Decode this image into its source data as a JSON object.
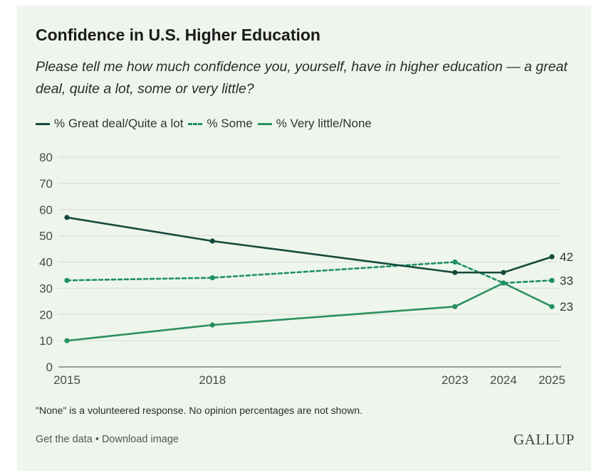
{
  "title": "Confidence in U.S. Higher Education",
  "subtitle": "Please tell me how much confidence you, yourself, have in higher education — a great deal, quite a lot, some or very little?",
  "note": "\"None\" is a volunteered response. No opinion percentages are not shown.",
  "footer": {
    "get_data": "Get the data",
    "separator": " • ",
    "download": "Download image"
  },
  "logo": "GALLUP",
  "colors": {
    "background": "#eef5ec",
    "great_deal": "#134a3c",
    "some": "#1d8f67",
    "very_little": "#2a915e",
    "grid": "#d5dcd3"
  },
  "chart_data": {
    "type": "line",
    "title": "Confidence in U.S. Higher Education",
    "x": [
      2015,
      2018,
      2023,
      2024,
      2025
    ],
    "x_tick_labels": [
      "2015",
      "2018",
      "2023",
      "2024",
      "2025"
    ],
    "y_ticks": [
      "0",
      "10",
      "20",
      "30",
      "40",
      "50",
      "60",
      "70",
      "80"
    ],
    "ylim": [
      0,
      80
    ],
    "grid": true,
    "legend_position": "top-left",
    "series": [
      {
        "name": "% Great deal/Quite a lot",
        "values": [
          57,
          48,
          36,
          36,
          42
        ],
        "style": "solid",
        "color": "#134a3c",
        "end_label": "42"
      },
      {
        "name": "% Some",
        "values": [
          33,
          34,
          40,
          32,
          33
        ],
        "style": "dashed",
        "color": "#1d8f67",
        "end_label": "33"
      },
      {
        "name": "% Very little/None",
        "values": [
          10,
          16,
          23,
          32,
          23
        ],
        "style": "solid",
        "color": "#2a915e",
        "end_label": "23"
      }
    ]
  }
}
